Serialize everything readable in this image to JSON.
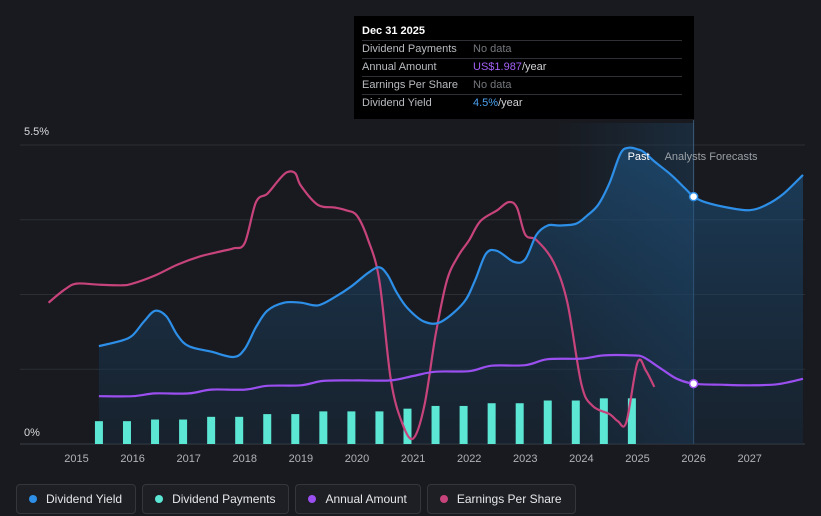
{
  "tooltip": {
    "date": "Dec 31 2025",
    "rows": [
      {
        "label": "Dividend Payments",
        "value": "No data",
        "unit": ""
      },
      {
        "label": "Annual Amount",
        "value": "US$1.987",
        "unit": "/year"
      },
      {
        "label": "Earnings Per Share",
        "value": "No data",
        "unit": ""
      },
      {
        "label": "Dividend Yield",
        "value": "4.5%",
        "unit": "/year"
      }
    ]
  },
  "legend": [
    {
      "label": "Dividend Yield",
      "color": "#2d8fe8"
    },
    {
      "label": "Dividend Payments",
      "color": "#5ce6d4"
    },
    {
      "label": "Annual Amount",
      "color": "#9b4ff0"
    },
    {
      "label": "Earnings Per Share",
      "color": "#c7437b"
    }
  ],
  "colors": {
    "background": "#181a1f",
    "grid": "#2b2e34",
    "dividend_yield": "#2d8fe8",
    "dividend_payments": "#5ce6d4",
    "annual_amount": "#9b4ff0",
    "earnings_per_share": "#c7437b"
  },
  "chart_data": {
    "type": "line",
    "title": "",
    "x_range": [
      2014.5,
      2027.95
    ],
    "x_ticks": [
      2015,
      2016,
      2017,
      2018,
      2019,
      2020,
      2021,
      2022,
      2023,
      2024,
      2025,
      2026,
      2027
    ],
    "y_range": [
      0,
      5.5
    ],
    "y_tick_labels": [
      {
        "value": 5.5,
        "label": "5.5%"
      },
      {
        "value": 0,
        "label": "0%"
      }
    ],
    "divider_x": 2026.0,
    "region_labels": {
      "past": "Past",
      "forecast": "Analysts Forecasts"
    },
    "series": [
      {
        "name": "Dividend Yield",
        "unit": "%",
        "x": [
          2015.4,
          2015.8,
          2016.0,
          2016.2,
          2016.4,
          2016.6,
          2016.8,
          2017.0,
          2017.4,
          2017.8,
          2018.0,
          2018.2,
          2018.4,
          2018.7,
          2019.0,
          2019.3,
          2019.6,
          2019.9,
          2020.2,
          2020.4,
          2020.55,
          2020.7,
          2020.9,
          2021.2,
          2021.5,
          2021.9,
          2022.1,
          2022.3,
          2022.5,
          2022.8,
          2023.0,
          2023.2,
          2023.4,
          2023.6,
          2023.9,
          2024.1,
          2024.3,
          2024.5,
          2024.7,
          2024.85,
          2025.0,
          2025.1,
          2025.3,
          2025.6,
          2025.85,
          2026.0,
          2026.2,
          2026.6,
          2027.0,
          2027.3,
          2027.6,
          2027.95
        ],
        "values": [
          1.8,
          1.9,
          2.0,
          2.25,
          2.45,
          2.35,
          2.0,
          1.8,
          1.7,
          1.6,
          1.75,
          2.15,
          2.45,
          2.6,
          2.6,
          2.55,
          2.7,
          2.9,
          3.15,
          3.25,
          3.1,
          2.8,
          2.5,
          2.25,
          2.25,
          2.6,
          3.0,
          3.5,
          3.55,
          3.35,
          3.4,
          3.85,
          4.02,
          4.02,
          4.05,
          4.2,
          4.4,
          4.8,
          5.35,
          5.45,
          5.42,
          5.38,
          5.2,
          4.95,
          4.7,
          4.55,
          4.45,
          4.35,
          4.3,
          4.4,
          4.6,
          4.95
        ]
      },
      {
        "name": "Dividend Payments",
        "type": "bar",
        "x": [
          2015.4,
          2015.9,
          2016.4,
          2016.9,
          2017.4,
          2017.9,
          2018.4,
          2018.9,
          2019.4,
          2019.9,
          2020.4,
          2020.9,
          2021.4,
          2021.9,
          2022.4,
          2022.9,
          2023.4,
          2023.9,
          2024.4,
          2024.9
        ],
        "values": [
          0.42,
          0.42,
          0.45,
          0.45,
          0.5,
          0.5,
          0.55,
          0.55,
          0.6,
          0.6,
          0.6,
          0.65,
          0.7,
          0.7,
          0.75,
          0.75,
          0.8,
          0.8,
          0.84,
          0.84
        ]
      },
      {
        "name": "Annual Amount",
        "x": [
          2015.4,
          2016.0,
          2016.4,
          2017.0,
          2017.4,
          2018.0,
          2018.4,
          2019.0,
          2019.4,
          2020.0,
          2020.6,
          2021.0,
          2021.4,
          2022.0,
          2022.4,
          2023.0,
          2023.4,
          2024.0,
          2024.4,
          2024.9,
          2025.1,
          2025.4,
          2025.7,
          2026.0,
          2026.5,
          2027.0,
          2027.5,
          2027.95
        ],
        "values": [
          0.88,
          0.88,
          0.93,
          0.93,
          1.0,
          1.0,
          1.07,
          1.08,
          1.16,
          1.17,
          1.17,
          1.25,
          1.33,
          1.34,
          1.44,
          1.45,
          1.56,
          1.57,
          1.63,
          1.63,
          1.6,
          1.4,
          1.2,
          1.11,
          1.09,
          1.08,
          1.1,
          1.2
        ]
      },
      {
        "name": "Earnings Per Share",
        "x": [
          2014.5,
          2014.8,
          2015.0,
          2015.4,
          2015.8,
          2016.0,
          2016.4,
          2016.8,
          2017.2,
          2017.6,
          2017.8,
          2018.0,
          2018.2,
          2018.4,
          2018.6,
          2018.75,
          2018.9,
          2019.0,
          2019.3,
          2019.6,
          2019.8,
          2020.0,
          2020.2,
          2020.4,
          2020.6,
          2020.8,
          2021.0,
          2021.2,
          2021.4,
          2021.6,
          2021.8,
          2022.0,
          2022.2,
          2022.5,
          2022.7,
          2022.85,
          2023.0,
          2023.2,
          2023.5,
          2023.75,
          2024.0,
          2024.2,
          2024.5,
          2024.65,
          2024.8,
          2025.0,
          2025.15,
          2025.3
        ],
        "values": [
          2.6,
          2.85,
          2.95,
          2.93,
          2.92,
          2.95,
          3.1,
          3.3,
          3.45,
          3.55,
          3.6,
          3.7,
          4.45,
          4.6,
          4.85,
          5.0,
          4.98,
          4.75,
          4.4,
          4.35,
          4.3,
          4.2,
          3.75,
          3.0,
          1.2,
          0.4,
          0.1,
          0.7,
          2.0,
          3.0,
          3.45,
          3.75,
          4.1,
          4.3,
          4.45,
          4.35,
          3.85,
          3.75,
          3.35,
          2.6,
          1.1,
          0.7,
          0.55,
          0.42,
          0.4,
          1.5,
          1.35,
          1.05
        ]
      }
    ],
    "markers": [
      {
        "series": "Dividend Yield",
        "x": 2026.0,
        "value": 4.55
      },
      {
        "series": "Annual Amount",
        "x": 2026.0,
        "value": 1.11
      }
    ]
  }
}
